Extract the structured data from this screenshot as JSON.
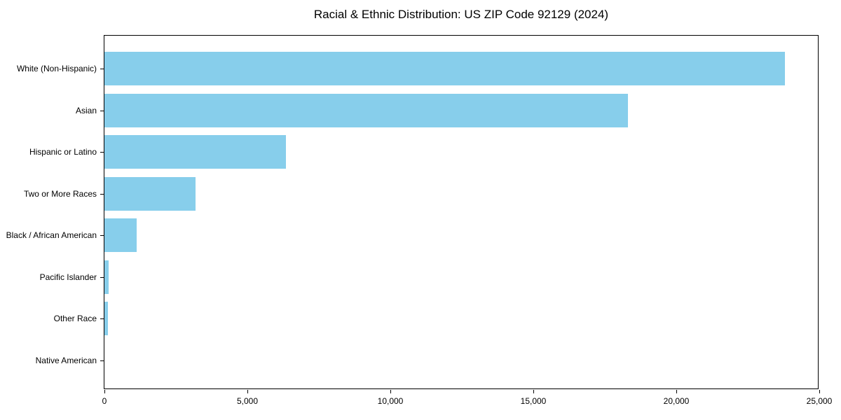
{
  "chart_data": {
    "type": "bar",
    "orientation": "horizontal",
    "title": "Racial & Ethnic Distribution: US ZIP Code 92129 (2024)",
    "xlabel": "",
    "ylabel": "",
    "categories": [
      "White (Non-Hispanic)",
      "Asian",
      "Hispanic or Latino",
      "Two or More Races",
      "Black / African American",
      "Pacific Islander",
      "Other Race",
      "Native American"
    ],
    "values": [
      23800,
      18300,
      6350,
      3180,
      1130,
      150,
      120,
      0
    ],
    "xlim": [
      0,
      25000
    ],
    "xticks": [
      0,
      5000,
      10000,
      15000,
      20000,
      25000
    ],
    "xtick_labels": [
      "0",
      "5,000",
      "10,000",
      "15,000",
      "20,000",
      "25,000"
    ],
    "bar_color": "#87CEEB",
    "grid": false,
    "legend_position": "none",
    "background_color": "#ffffff"
  }
}
